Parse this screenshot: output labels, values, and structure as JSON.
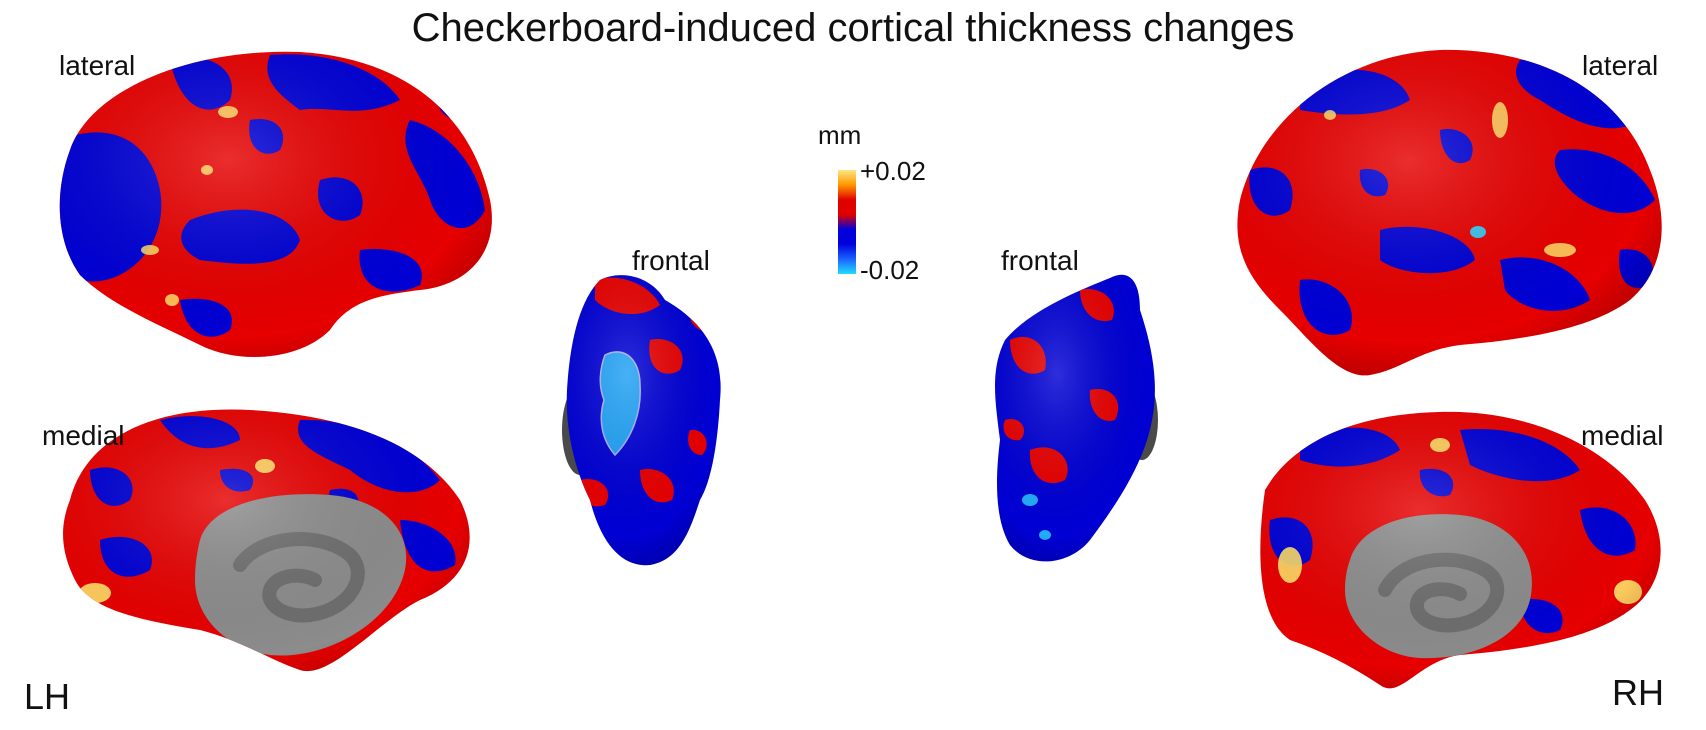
{
  "figure": {
    "title": "Checkerboard-induced cortical thickness changes",
    "views": {
      "left_lateral": "lateral",
      "left_medial": "medial",
      "left_frontal": "frontal",
      "right_frontal": "frontal",
      "right_lateral": "lateral",
      "right_medial": "medial"
    },
    "hemispheres": {
      "left": "LH",
      "right": "RH"
    },
    "colorbar": {
      "unit": "mm",
      "max_label": "+0.02",
      "min_label": "-0.02",
      "colors": [
        "#ffe680",
        "#ff9a00",
        "#e00000",
        "#e00000",
        "#0000dd",
        "#0000dd",
        "#1a66ff",
        "#22ddff"
      ]
    },
    "colors": {
      "positive": "#e60000",
      "negative": "#0000d4",
      "medial_wall": "#8c8c8c",
      "medial_wall_dark": "#6e6e6e",
      "hotspot": "#ffe066",
      "coldspot": "#2ad6ff"
    }
  }
}
